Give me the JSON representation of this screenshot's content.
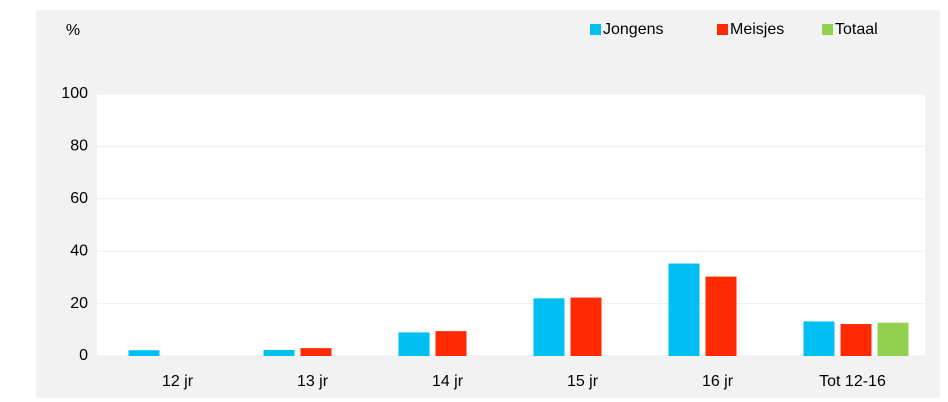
{
  "chart_data": {
    "type": "bar",
    "y_label": "%",
    "categories": [
      "12 jr",
      "13 jr",
      "14 jr",
      "15 jr",
      "16 jr",
      "Tot 12-16"
    ],
    "series": [
      {
        "name": "Jongens",
        "color": "#00bff3",
        "values": [
          2.2,
          2.3,
          9,
          22,
          35.3,
          13.2
        ]
      },
      {
        "name": "Meisjes",
        "color": "#ff2a00",
        "values": [
          null,
          3,
          9.5,
          22.3,
          30.3,
          12.2
        ]
      },
      {
        "name": "Totaal",
        "color": "#92d050",
        "values": [
          null,
          null,
          null,
          null,
          null,
          12.7
        ]
      }
    ],
    "ylim": [
      0,
      100
    ],
    "yticks": [
      0,
      20,
      40,
      60,
      80,
      100
    ],
    "grid": true,
    "legend": "top-right"
  }
}
